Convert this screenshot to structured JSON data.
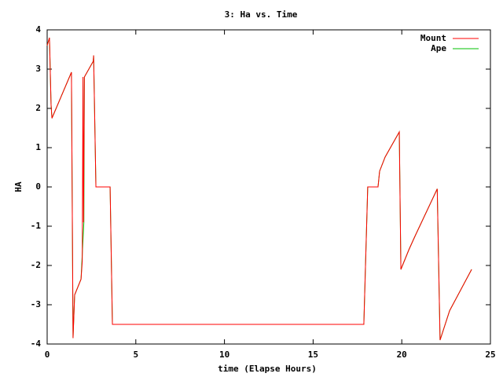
{
  "chart_data": {
    "type": "line",
    "title": "3: Ha vs. Time",
    "x_label": "time (Elapse Hours)",
    "y_label": "HA",
    "xlim": [
      0,
      25
    ],
    "xticks": [
      0,
      5,
      10,
      15,
      20,
      25
    ],
    "ylim": [
      -4,
      4
    ],
    "yticks": [
      -4,
      -3,
      -2,
      -1,
      0,
      1,
      2,
      3,
      4
    ],
    "legend": "top-right",
    "series": [
      {
        "name": "Mount",
        "color": "#ff0000",
        "x": [
          0,
          0.13,
          0.22,
          0.27,
          1.37,
          1.46,
          1.55,
          1.91,
          1.98,
          2.02,
          2.05,
          2.1,
          2.6,
          2.62,
          2.75,
          3.55,
          3.68,
          17.86,
          18.08,
          18.66,
          18.75,
          19.06,
          19.86,
          19.95,
          20.4,
          20.75,
          22.0,
          22.16,
          22.7,
          23.94
        ],
        "values": [
          3.6,
          3.8,
          2.1,
          1.75,
          2.92,
          -3.85,
          -2.75,
          -2.35,
          -1.9,
          2.8,
          -0.9,
          2.8,
          3.2,
          3.35,
          0,
          0,
          -3.5,
          -3.5,
          0,
          0,
          0.4,
          0.76,
          1.4,
          -2.1,
          -1.6,
          -1.25,
          -0.05,
          -3.9,
          -3.15,
          -2.1
        ]
      },
      {
        "name": "Ape",
        "color": "#00c000",
        "x": [
          0,
          0.13,
          0.22,
          0.27,
          1.37,
          1.46,
          1.55,
          1.91,
          2.07,
          2.1,
          2.6,
          2.62,
          2.75,
          3.55,
          3.68,
          17.86,
          18.08,
          18.66,
          18.75,
          19.06,
          19.86,
          19.95,
          20.4,
          20.75,
          22.0,
          22.16,
          22.7,
          23.94
        ],
        "values": [
          3.6,
          3.8,
          2.1,
          1.75,
          2.92,
          -3.85,
          -2.75,
          -2.35,
          -0.9,
          2.8,
          3.2,
          3.35,
          0,
          0,
          -3.5,
          -3.5,
          0,
          0,
          0.4,
          0.76,
          1.4,
          -2.1,
          -1.6,
          -1.25,
          -0.05,
          -3.9,
          -3.15,
          -2.1
        ]
      }
    ]
  }
}
